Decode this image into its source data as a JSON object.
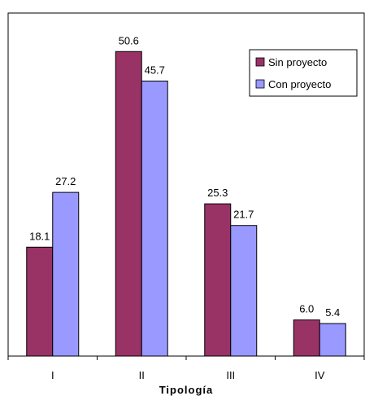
{
  "chart_data": {
    "type": "bar",
    "categories": [
      "I",
      "II",
      "III",
      "IV"
    ],
    "series": [
      {
        "name": "Sin proyecto",
        "values": [
          18.1,
          50.6,
          25.3,
          6.0
        ],
        "labels": [
          "18.1",
          "50.6",
          "25.3",
          "6.0"
        ],
        "color": "#993366"
      },
      {
        "name": "Con proyecto",
        "values": [
          27.2,
          45.7,
          21.7,
          5.4
        ],
        "labels": [
          "27.2",
          "45.7",
          "21.7",
          "5.4"
        ],
        "color": "#9999FF"
      }
    ],
    "xlabel": "Tipología",
    "ylabel": "",
    "ylim": [
      0,
      57
    ],
    "grid": false,
    "legend": "top-right"
  }
}
